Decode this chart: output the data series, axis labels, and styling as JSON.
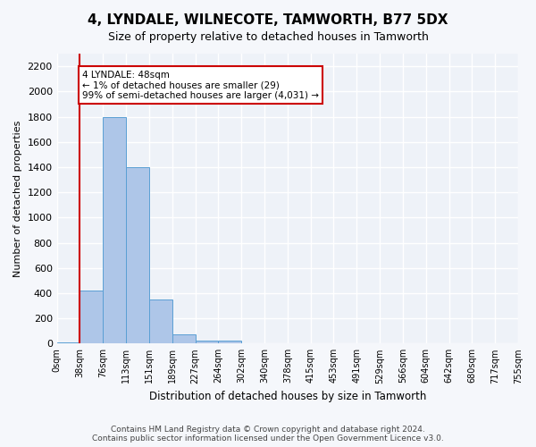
{
  "title": "4, LYNDALE, WILNECOTE, TAMWORTH, B77 5DX",
  "subtitle": "Size of property relative to detached houses in Tamworth",
  "xlabel": "Distribution of detached houses by size in Tamworth",
  "ylabel": "Number of detached properties",
  "bar_color": "#aec6e8",
  "bar_edge_color": "#5a9fd4",
  "background_color": "#eef2f8",
  "grid_color": "#ffffff",
  "tick_labels": [
    "0sqm",
    "38sqm",
    "76sqm",
    "113sqm",
    "151sqm",
    "189sqm",
    "227sqm",
    "264sqm",
    "302sqm",
    "340sqm",
    "378sqm",
    "415sqm",
    "453sqm",
    "491sqm",
    "529sqm",
    "566sqm",
    "604sqm",
    "642sqm",
    "680sqm",
    "717sqm",
    "755sqm"
  ],
  "bar_heights": [
    10,
    420,
    1800,
    1400,
    350,
    70,
    25,
    20,
    0,
    0,
    0,
    0,
    0,
    0,
    0,
    0,
    0,
    0,
    0,
    0
  ],
  "ylim": [
    0,
    2300
  ],
  "yticks": [
    0,
    200,
    400,
    600,
    800,
    1000,
    1200,
    1400,
    1600,
    1800,
    2000,
    2200
  ],
  "property_line_x": 1,
  "property_line_color": "#cc0000",
  "annotation_text": "4 LYNDALE: 48sqm\n← 1% of detached houses are smaller (29)\n99% of semi-detached houses are larger (4,031) →",
  "annotation_box_color": "#ffffff",
  "annotation_box_edge": "#cc0000",
  "footer_text": "Contains HM Land Registry data © Crown copyright and database right 2024.\nContains public sector information licensed under the Open Government Licence v3.0.",
  "fig_width": 6.0,
  "fig_height": 5.0
}
